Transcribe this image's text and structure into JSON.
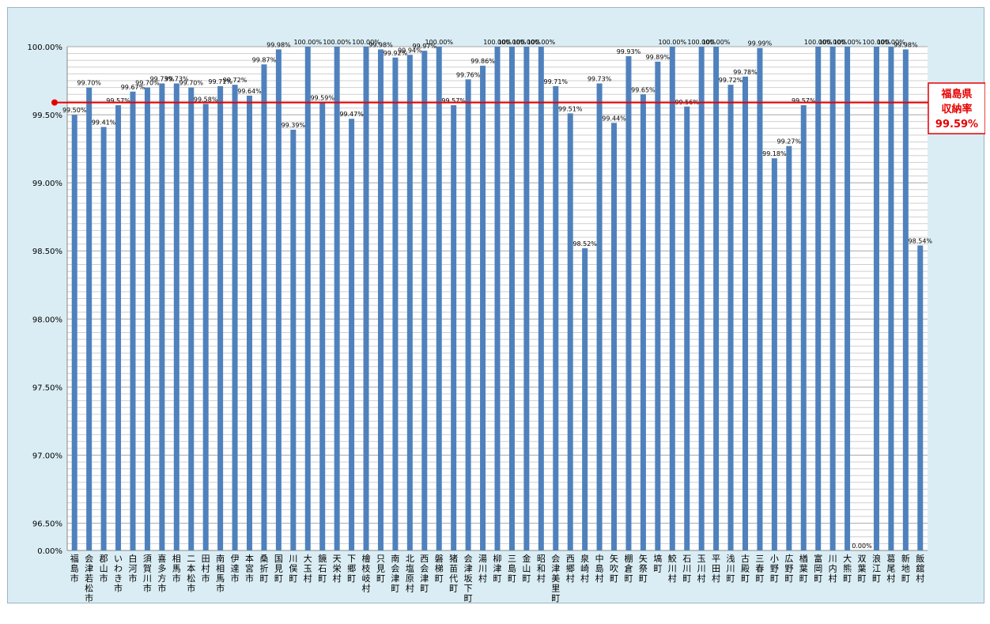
{
  "chart_data": {
    "type": "bar",
    "categories": [
      "福島市",
      "会津若松市",
      "郡山市",
      "いわき市",
      "白河市",
      "須賀川市",
      "喜多方市",
      "相馬市",
      "二本松市",
      "田村市",
      "南相馬市",
      "伊達市",
      "本宮市",
      "桑折町",
      "国見町",
      "川俣町",
      "大玉村",
      "鏡石町",
      "天栄村",
      "下郷町",
      "檜枝岐村",
      "只見町",
      "南会津町",
      "北塩原村",
      "西会津町",
      "磐梯町",
      "猪苗代町",
      "会津坂下町",
      "湯川村",
      "柳津町",
      "三島町",
      "金山町",
      "昭和村",
      "会津美里町",
      "西郷村",
      "泉崎村",
      "中島村",
      "矢吹町",
      "棚倉町",
      "矢祭町",
      "塙町",
      "鮫川村",
      "石川町",
      "玉川村",
      "平田村",
      "浅川町",
      "古殿町",
      "三春町",
      "小野町",
      "広野町",
      "楢葉町",
      "富岡町",
      "川内村",
      "大熊町",
      "双葉町",
      "浪江町",
      "葛尾村",
      "新地町",
      "飯舘村"
    ],
    "values": [
      99.5,
      99.7,
      99.41,
      99.57,
      99.67,
      99.7,
      99.73,
      99.73,
      99.7,
      99.58,
      99.71,
      99.72,
      99.64,
      99.87,
      99.98,
      99.39,
      100.0,
      99.59,
      100.0,
      99.47,
      100.0,
      99.98,
      99.92,
      99.94,
      99.97,
      100.0,
      99.57,
      99.76,
      99.86,
      100.0,
      100.0,
      100.0,
      100.0,
      99.71,
      99.51,
      98.52,
      99.73,
      99.44,
      99.93,
      99.65,
      99.89,
      100.0,
      99.56,
      100.0,
      100.0,
      99.72,
      99.78,
      99.99,
      99.18,
      99.27,
      99.57,
      100.0,
      100.0,
      100.0,
      0.0,
      100.0,
      100.0,
      99.98,
      98.54
    ],
    "data_labels": [
      "99.50%",
      "99.70%",
      "99.41%",
      "99.57%",
      "99.67%",
      "99.70%",
      "99.73%",
      "99.73%",
      "99.70%",
      "99.58%",
      "99.71%",
      "99.72%",
      "99.64%",
      "99.87%",
      "99.98%",
      "99.39%",
      "100.00%",
      "99.59%",
      "100.00%",
      "99.47%",
      "100.00%",
      "99.98%",
      "99.92%",
      "99.94%",
      "99.97%",
      "100.00%",
      "99.57%",
      "99.76%",
      "99.86%",
      "100.00%",
      "100.00%",
      "100.00%",
      "100.00%",
      "99.71%",
      "99.51%",
      "98.52%",
      "99.73%",
      "99.44%",
      "99.93%",
      "99.65%",
      "99.89%",
      "100.00%",
      "99.56%",
      "100.00%",
      "100.00%",
      "99.72%",
      "99.78%",
      "99.99%",
      "99.18%",
      "99.27%",
      "99.57%",
      "100.00%",
      "100.00%",
      "100.00%",
      "0.00%",
      "100.00%",
      "100.00%",
      "99.98%",
      "98.54%"
    ],
    "y_ticks": [
      "100.00%",
      "99.50%",
      "99.00%",
      "98.50%",
      "98.00%",
      "97.50%",
      "97.00%",
      "96.50%",
      "0.00%"
    ],
    "y_tick_values": [
      100,
      99.5,
      99,
      98.5,
      98,
      97.5,
      97,
      96.5,
      0
    ],
    "axis_break": "between 96.50% and 0.00%",
    "reference_line": {
      "value": 99.59,
      "label": [
        "福島県",
        "収納率",
        "99.59%"
      ]
    },
    "colors": {
      "bar": "#4f81bd",
      "reference": "#e60000",
      "background": "#daedf4",
      "plot": "#ffffff",
      "grid": "#b7b7b7"
    },
    "grid": true,
    "legend": "none"
  }
}
